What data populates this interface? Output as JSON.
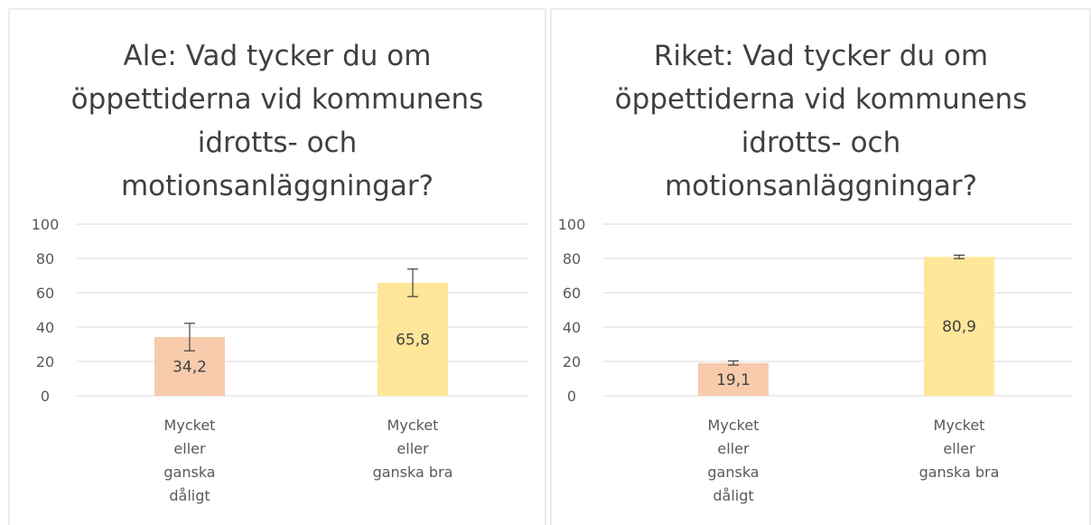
{
  "chart_data": [
    {
      "type": "bar",
      "title": "Ale: Vad tycker du om öppettiderna vid kommunens idrotts- och motionsanläggningar?",
      "categories": [
        "Mycket eller ganska dåligt",
        "Mycket eller ganska bra"
      ],
      "values": [
        34.2,
        65.8
      ],
      "value_labels": [
        "34,2",
        "65,8"
      ],
      "errors": [
        8,
        8
      ],
      "colors": [
        "#f8cbad",
        "#ffe699"
      ],
      "ylim": [
        0,
        100
      ],
      "yticks": [
        0,
        20,
        40,
        60,
        80,
        100
      ],
      "grid": true
    },
    {
      "type": "bar",
      "title": "Riket: Vad tycker du om öppettiderna vid kommunens idrotts- och motionsanläggningar?",
      "categories": [
        "Mycket eller ganska dåligt",
        "Mycket eller ganska bra"
      ],
      "values": [
        19.1,
        80.9
      ],
      "value_labels": [
        "19,1",
        "80,9"
      ],
      "errors": [
        1.2,
        1
      ],
      "colors": [
        "#f8cbad",
        "#ffe699"
      ],
      "ylim": [
        0,
        100
      ],
      "yticks": [
        0,
        20,
        40,
        60,
        80,
        100
      ],
      "grid": true
    }
  ]
}
